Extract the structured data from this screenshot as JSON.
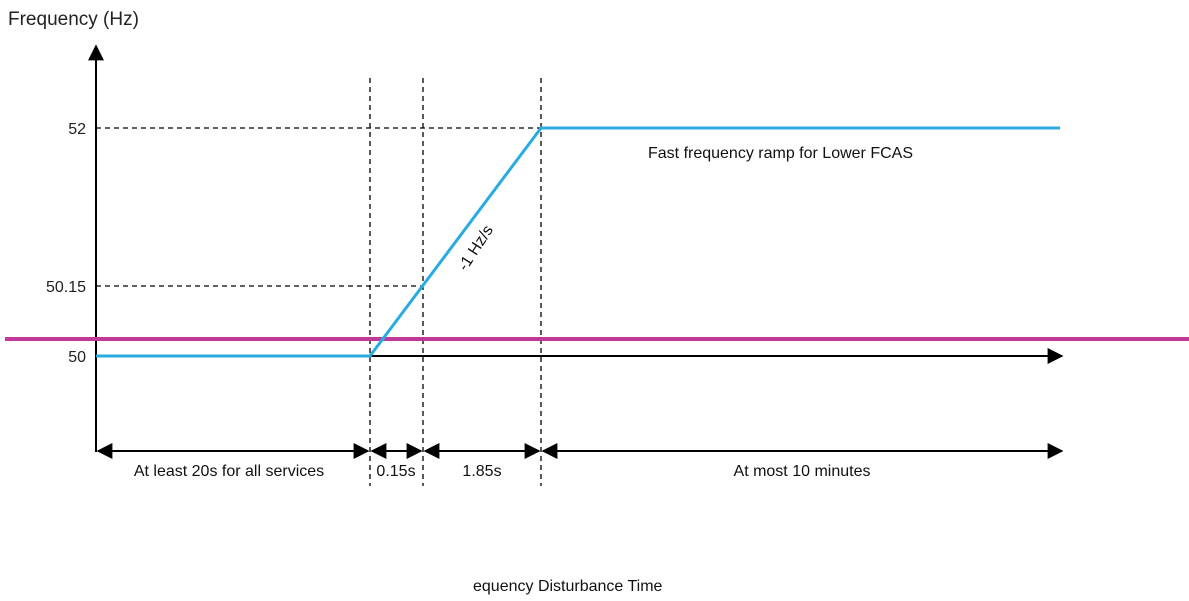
{
  "colors": {
    "series": "#29ABE2",
    "threshold": "#C0399A",
    "axis": "#000000"
  },
  "chart_data": {
    "type": "line",
    "title": "",
    "ylabel": "Frequency (Hz)",
    "xlabel": "equency Disturbance Time",
    "y_ticks": [
      "52",
      "50.15",
      "50"
    ],
    "series": [
      {
        "values_hz": [
          50,
          50,
          52,
          52
        ],
        "phase_seconds": [
          20,
          0.15,
          1.85,
          600
        ]
      }
    ],
    "threshold_line": {
      "color": "#C0399A"
    },
    "annotations": {
      "ramp_label": "Fast frequency ramp for Lower FCAS",
      "slope_label": "-1 Hz/s"
    },
    "segments": [
      {
        "label": "At least 20s for all services"
      },
      {
        "label": "0.15s"
      },
      {
        "label": "1.85s"
      },
      {
        "label": "At most 10 minutes"
      }
    ]
  }
}
